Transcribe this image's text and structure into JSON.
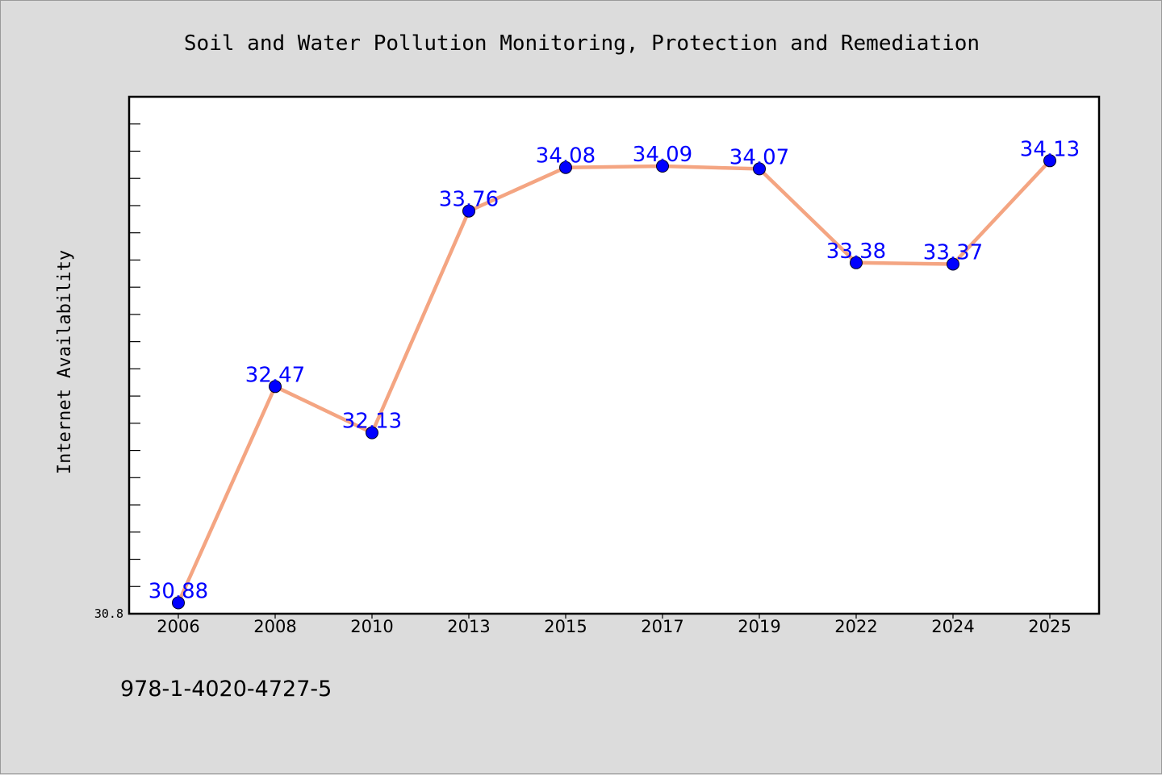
{
  "chart_data": {
    "type": "line",
    "title": "Soil and Water Pollution Monitoring, Protection and Remediation",
    "xlabel": "",
    "ylabel": "Internet Availability",
    "categories": [
      "2006",
      "2008",
      "2010",
      "2013",
      "2015",
      "2017",
      "2019",
      "2022",
      "2024",
      "2025"
    ],
    "values": [
      30.88,
      32.47,
      32.13,
      33.76,
      34.08,
      34.09,
      34.07,
      33.38,
      33.37,
      34.13
    ],
    "data_labels": [
      "30.88",
      "32.47",
      "32.13",
      "33.76",
      "34.08",
      "34.09",
      "34.07",
      "33.38",
      "33.37",
      "34.13"
    ],
    "ytick_labels": [
      "30.8"
    ],
    "ylim": [
      30.8,
      34.6
    ],
    "grid": false,
    "legend": "none",
    "line_color": "#f4a582",
    "marker_color": "#0000ff",
    "label_color": "#0000ff"
  },
  "footer": {
    "isbn": "978-1-4020-4727-5"
  }
}
